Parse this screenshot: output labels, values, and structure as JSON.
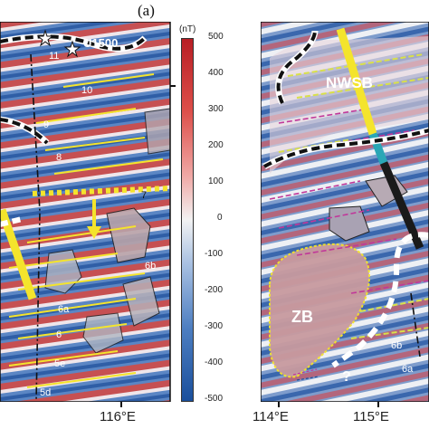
{
  "panel_label": "(a)",
  "colorbar": {
    "unit": "(nT)",
    "ticks": [
      "500",
      "400",
      "300",
      "200",
      "100",
      "0",
      "-100",
      "-200",
      "-300",
      "-400",
      "-500"
    ],
    "colors": {
      "top": "#c8262a",
      "mid": "#f2f2f2",
      "bottom": "#1e5aa8"
    }
  },
  "left_map": {
    "well_label": "U1500",
    "anomaly_labels": [
      "11",
      "10",
      "9",
      "8",
      "7",
      "6b",
      "6a",
      "6",
      "5e",
      "5d"
    ],
    "x_tick": "116°E"
  },
  "right_map": {
    "basin_labels": [
      "NWSB",
      "ZB"
    ],
    "anomaly_labels": [
      "6b",
      "6a"
    ],
    "question_mark": "?",
    "x_ticks": [
      "114°E",
      "115°E"
    ]
  },
  "colors": {
    "yellow": "#f4e42c",
    "magenta": "#c0389a",
    "black": "#111111"
  }
}
